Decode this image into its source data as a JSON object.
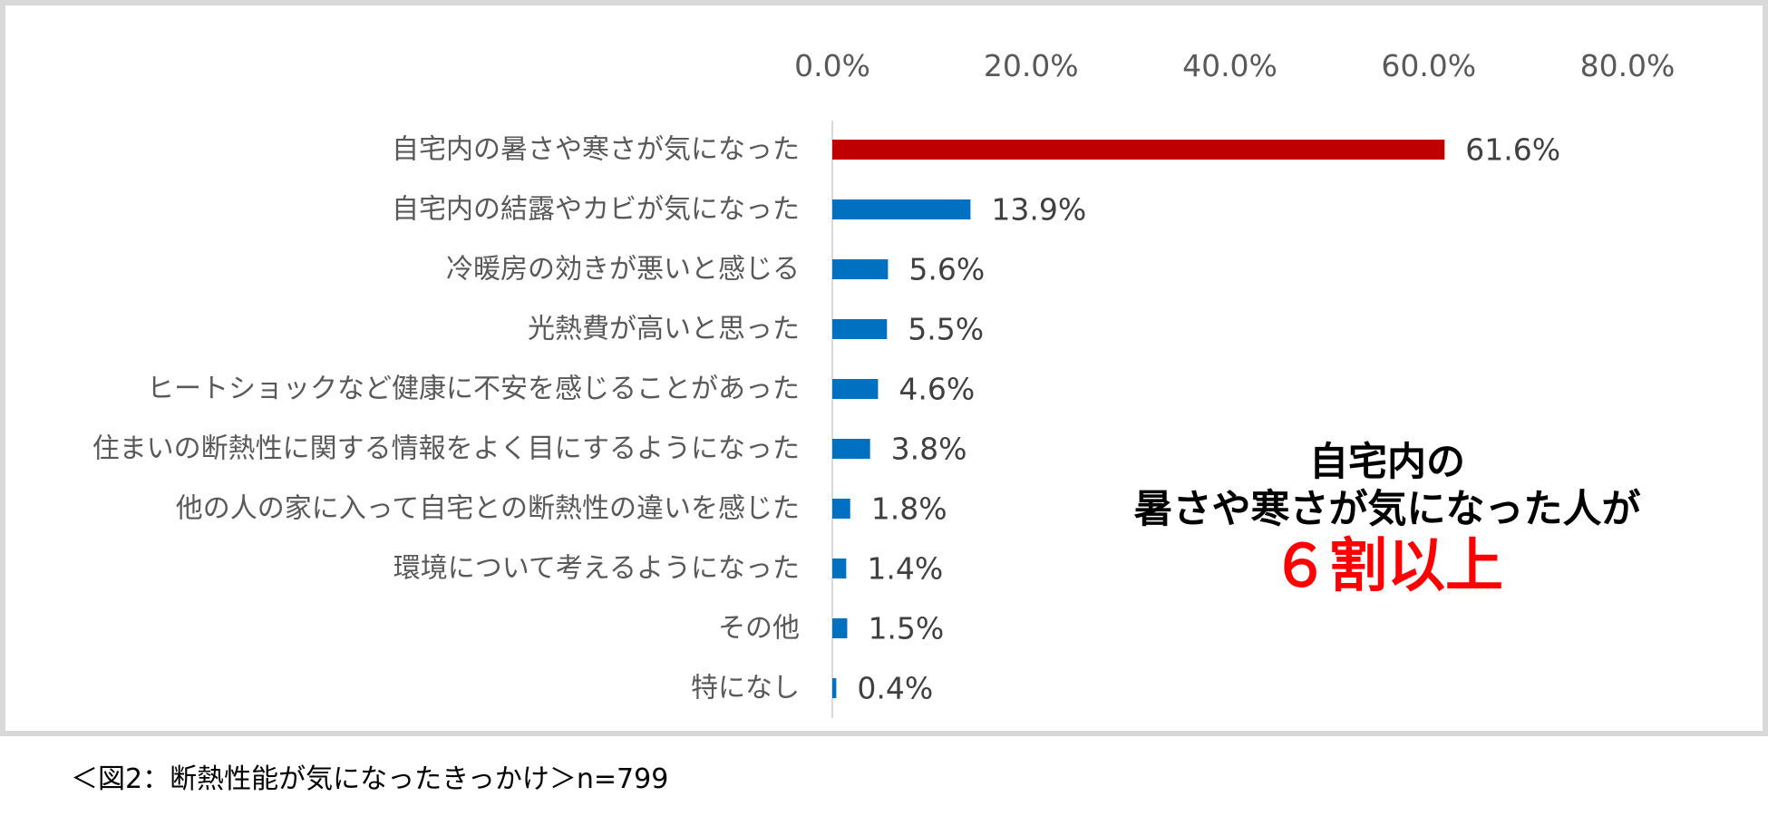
{
  "chart_data": {
    "type": "bar",
    "orientation": "horizontal",
    "categories": [
      "自宅内の暑さや寒さが気になった",
      "自宅内の結露やカビが気になった",
      "冷暖房の効きが悪いと感じる",
      "光熱費が高いと思った",
      "ヒートショックなど健康に不安を感じることがあった",
      "住まいの断熱性に関する情報をよく目にするようになった",
      "他の人の家に入って自宅との断熱性の違いを感じた",
      "環境について考えるようになった",
      "その他",
      "特になし"
    ],
    "values": [
      61.6,
      13.9,
      5.6,
      5.5,
      4.6,
      3.8,
      1.8,
      1.4,
      1.5,
      0.4
    ],
    "value_labels": [
      "61.6%",
      "13.9%",
      "5.6%",
      "5.5%",
      "4.6%",
      "3.8%",
      "1.8%",
      "1.4%",
      "1.5%",
      "0.4%"
    ],
    "xlim": [
      0,
      80
    ],
    "xticks": [
      0,
      20,
      40,
      60,
      80
    ],
    "xtick_labels": [
      "0.0%",
      "20.0%",
      "40.0%",
      "60.0%",
      "80.0%"
    ],
    "x_axis_position": "top",
    "grid": false,
    "highlight_color": "#c00000",
    "bar_color": "#0070c0",
    "highlight_index": 0
  },
  "callout": {
    "line1": "自宅内の",
    "line2": "暑さや寒さが気になった人が",
    "line3": "６割以上"
  },
  "caption": "＜図2：断熱性能が気になったきっかけ＞n=799"
}
